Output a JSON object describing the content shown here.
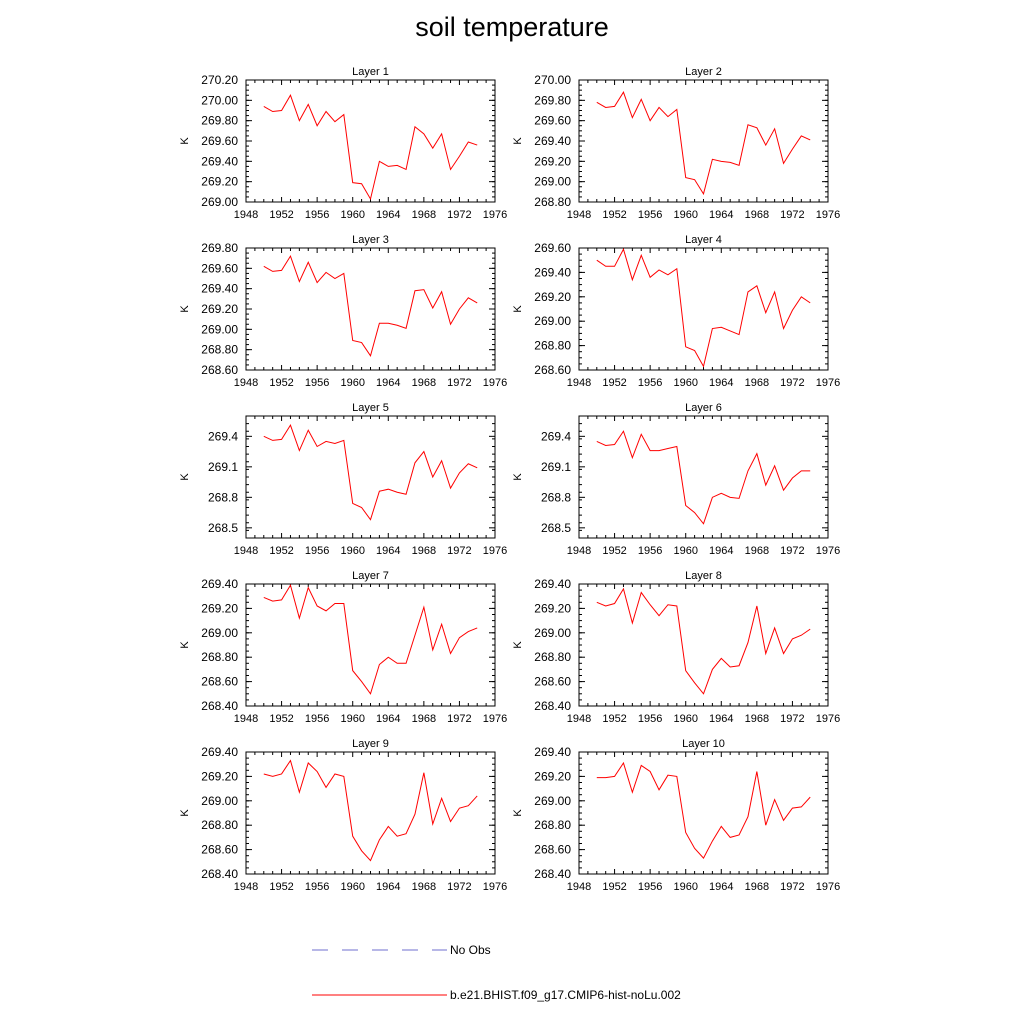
{
  "title": "soil temperature",
  "line_color": "#ff0000",
  "obs_color": "#6f6fcf",
  "legend": {
    "obs_label": "No Obs",
    "model_label": "b.e21.BHIST.f09_g17.CMIP6-hist-noLu.002"
  },
  "chart_data": [
    {
      "type": "line",
      "title": "Layer 1",
      "xlabel": "",
      "ylabel": "K",
      "xlim": [
        1948,
        1976
      ],
      "ylim": [
        269.0,
        270.2
      ],
      "xticks": [
        "1948",
        "1952",
        "1956",
        "1960",
        "1964",
        "1968",
        "1972",
        "1976"
      ],
      "yticks": [
        "269.00",
        "269.20",
        "269.40",
        "269.60",
        "269.80",
        "270.00",
        "270.20"
      ],
      "x": [
        1950,
        1951,
        1952,
        1953,
        1954,
        1955,
        1956,
        1957,
        1958,
        1959,
        1960,
        1961,
        1962,
        1963,
        1964,
        1965,
        1966,
        1967,
        1968,
        1969,
        1970,
        1971,
        1972,
        1973,
        1974
      ],
      "series": [
        {
          "name": "b.e21.BHIST.f09_g17.CMIP6-hist-noLu.002",
          "values": [
            269.94,
            269.89,
            269.9,
            270.05,
            269.8,
            269.96,
            269.75,
            269.89,
            269.79,
            269.86,
            269.19,
            269.18,
            269.03,
            269.4,
            269.35,
            269.36,
            269.32,
            269.74,
            269.67,
            269.53,
            269.67,
            269.32,
            269.45,
            269.59,
            269.56
          ]
        }
      ]
    },
    {
      "type": "line",
      "title": "Layer 2",
      "xlabel": "",
      "ylabel": "K",
      "xlim": [
        1948,
        1976
      ],
      "ylim": [
        268.8,
        270.0
      ],
      "xticks": [
        "1948",
        "1952",
        "1956",
        "1960",
        "1964",
        "1968",
        "1972",
        "1976"
      ],
      "yticks": [
        "268.80",
        "269.00",
        "269.20",
        "269.40",
        "269.60",
        "269.80",
        "270.00"
      ],
      "x": [
        1950,
        1951,
        1952,
        1953,
        1954,
        1955,
        1956,
        1957,
        1958,
        1959,
        1960,
        1961,
        1962,
        1963,
        1964,
        1965,
        1966,
        1967,
        1968,
        1969,
        1970,
        1971,
        1972,
        1973,
        1974
      ],
      "series": [
        {
          "name": "b.e21.BHIST.f09_g17.CMIP6-hist-noLu.002",
          "values": [
            269.78,
            269.73,
            269.74,
            269.88,
            269.63,
            269.81,
            269.6,
            269.73,
            269.64,
            269.71,
            269.04,
            269.02,
            268.88,
            269.22,
            269.2,
            269.19,
            269.16,
            269.56,
            269.53,
            269.36,
            269.52,
            269.18,
            269.32,
            269.45,
            269.41
          ]
        }
      ]
    },
    {
      "type": "line",
      "title": "Layer 3",
      "xlabel": "",
      "ylabel": "K",
      "xlim": [
        1948,
        1976
      ],
      "ylim": [
        268.6,
        269.8
      ],
      "xticks": [
        "1948",
        "1952",
        "1956",
        "1960",
        "1964",
        "1968",
        "1972",
        "1976"
      ],
      "yticks": [
        "268.60",
        "268.80",
        "269.00",
        "269.20",
        "269.40",
        "269.60",
        "269.80"
      ],
      "x": [
        1950,
        1951,
        1952,
        1953,
        1954,
        1955,
        1956,
        1957,
        1958,
        1959,
        1960,
        1961,
        1962,
        1963,
        1964,
        1965,
        1966,
        1967,
        1968,
        1969,
        1970,
        1971,
        1972,
        1973,
        1974
      ],
      "series": [
        {
          "name": "b.e21.BHIST.f09_g17.CMIP6-hist-noLu.002",
          "values": [
            269.62,
            269.57,
            269.58,
            269.72,
            269.47,
            269.66,
            269.46,
            269.56,
            269.5,
            269.55,
            268.89,
            268.87,
            268.74,
            269.06,
            269.06,
            269.04,
            269.01,
            269.38,
            269.39,
            269.21,
            269.37,
            269.05,
            269.2,
            269.31,
            269.26
          ]
        }
      ]
    },
    {
      "type": "line",
      "title": "Layer 4",
      "xlabel": "",
      "ylabel": "K",
      "xlim": [
        1948,
        1976
      ],
      "ylim": [
        268.6,
        269.6
      ],
      "xticks": [
        "1948",
        "1952",
        "1956",
        "1960",
        "1964",
        "1968",
        "1972",
        "1976"
      ],
      "yticks": [
        "268.60",
        "268.80",
        "269.00",
        "269.20",
        "269.40",
        "269.60"
      ],
      "x": [
        1950,
        1951,
        1952,
        1953,
        1954,
        1955,
        1956,
        1957,
        1958,
        1959,
        1960,
        1961,
        1962,
        1963,
        1964,
        1965,
        1966,
        1967,
        1968,
        1969,
        1970,
        1971,
        1972,
        1973,
        1974
      ],
      "series": [
        {
          "name": "b.e21.BHIST.f09_g17.CMIP6-hist-noLu.002",
          "values": [
            269.5,
            269.45,
            269.45,
            269.59,
            269.34,
            269.54,
            269.36,
            269.42,
            269.38,
            269.43,
            268.79,
            268.76,
            268.63,
            268.94,
            268.95,
            268.92,
            268.89,
            269.24,
            269.29,
            269.07,
            269.24,
            268.94,
            269.09,
            269.2,
            269.15
          ]
        }
      ]
    },
    {
      "type": "line",
      "title": "Layer 5",
      "xlabel": "",
      "ylabel": "K",
      "xlim": [
        1948,
        1976
      ],
      "ylim": [
        268.4,
        269.6
      ],
      "xticks": [
        "1948",
        "1952",
        "1956",
        "1960",
        "1964",
        "1968",
        "1972",
        "1976"
      ],
      "yticks": [
        "268.5",
        "268.8",
        "269.1",
        "269.4"
      ],
      "ytick_values": [
        268.5,
        268.8,
        269.1,
        269.4
      ],
      "x": [
        1950,
        1951,
        1952,
        1953,
        1954,
        1955,
        1956,
        1957,
        1958,
        1959,
        1960,
        1961,
        1962,
        1963,
        1964,
        1965,
        1966,
        1967,
        1968,
        1969,
        1970,
        1971,
        1972,
        1973,
        1974
      ],
      "series": [
        {
          "name": "b.e21.BHIST.f09_g17.CMIP6-hist-noLu.002",
          "values": [
            269.4,
            269.36,
            269.37,
            269.51,
            269.26,
            269.46,
            269.3,
            269.35,
            269.33,
            269.36,
            268.74,
            268.7,
            268.58,
            268.86,
            268.88,
            268.85,
            268.83,
            269.14,
            269.25,
            269.0,
            269.16,
            268.89,
            269.04,
            269.13,
            269.09
          ]
        }
      ]
    },
    {
      "type": "line",
      "title": "Layer 6",
      "xlabel": "",
      "ylabel": "K",
      "xlim": [
        1948,
        1976
      ],
      "ylim": [
        268.4,
        269.6
      ],
      "xticks": [
        "1948",
        "1952",
        "1956",
        "1960",
        "1964",
        "1968",
        "1972",
        "1976"
      ],
      "yticks": [
        "268.5",
        "268.8",
        "269.1",
        "269.4"
      ],
      "ytick_values": [
        268.5,
        268.8,
        269.1,
        269.4
      ],
      "x": [
        1950,
        1951,
        1952,
        1953,
        1954,
        1955,
        1956,
        1957,
        1958,
        1959,
        1960,
        1961,
        1962,
        1963,
        1964,
        1965,
        1966,
        1967,
        1968,
        1969,
        1970,
        1971,
        1972,
        1973,
        1974
      ],
      "series": [
        {
          "name": "b.e21.BHIST.f09_g17.CMIP6-hist-noLu.002",
          "values": [
            269.35,
            269.31,
            269.32,
            269.45,
            269.19,
            269.42,
            269.26,
            269.26,
            269.28,
            269.3,
            268.72,
            268.65,
            268.54,
            268.8,
            268.84,
            268.8,
            268.79,
            269.06,
            269.23,
            268.92,
            269.11,
            268.87,
            268.99,
            269.06,
            269.06
          ]
        }
      ]
    },
    {
      "type": "line",
      "title": "Layer 7",
      "xlabel": "",
      "ylabel": "K",
      "xlim": [
        1948,
        1976
      ],
      "ylim": [
        268.4,
        269.4
      ],
      "xticks": [
        "1948",
        "1952",
        "1956",
        "1960",
        "1964",
        "1968",
        "1972",
        "1976"
      ],
      "yticks": [
        "268.40",
        "268.60",
        "268.80",
        "269.00",
        "269.20",
        "269.40"
      ],
      "x": [
        1950,
        1951,
        1952,
        1953,
        1954,
        1955,
        1956,
        1957,
        1958,
        1959,
        1960,
        1961,
        1962,
        1963,
        1964,
        1965,
        1966,
        1967,
        1968,
        1969,
        1970,
        1971,
        1972,
        1973,
        1974
      ],
      "series": [
        {
          "name": "b.e21.BHIST.f09_g17.CMIP6-hist-noLu.002",
          "values": [
            269.29,
            269.26,
            269.27,
            269.39,
            269.12,
            269.37,
            269.22,
            269.18,
            269.24,
            269.24,
            268.69,
            268.6,
            268.5,
            268.74,
            268.8,
            268.75,
            268.75,
            268.98,
            269.21,
            268.86,
            269.07,
            268.83,
            268.96,
            269.01,
            269.04
          ]
        }
      ]
    },
    {
      "type": "line",
      "title": "Layer 8",
      "xlabel": "",
      "ylabel": "K",
      "xlim": [
        1948,
        1976
      ],
      "ylim": [
        268.4,
        269.4
      ],
      "xticks": [
        "1948",
        "1952",
        "1956",
        "1960",
        "1964",
        "1968",
        "1972",
        "1976"
      ],
      "yticks": [
        "268.40",
        "268.60",
        "268.80",
        "269.00",
        "269.20",
        "269.40"
      ],
      "x": [
        1950,
        1951,
        1952,
        1953,
        1954,
        1955,
        1956,
        1957,
        1958,
        1959,
        1960,
        1961,
        1962,
        1963,
        1964,
        1965,
        1966,
        1967,
        1968,
        1969,
        1970,
        1971,
        1972,
        1973,
        1974
      ],
      "series": [
        {
          "name": "b.e21.BHIST.f09_g17.CMIP6-hist-noLu.002",
          "values": [
            269.25,
            269.22,
            269.24,
            269.36,
            269.08,
            269.33,
            269.23,
            269.14,
            269.23,
            269.22,
            268.69,
            268.59,
            268.5,
            268.7,
            268.79,
            268.72,
            268.73,
            268.92,
            269.22,
            268.83,
            269.04,
            268.83,
            268.95,
            268.98,
            269.03
          ]
        }
      ]
    },
    {
      "type": "line",
      "title": "Layer 9",
      "xlabel": "",
      "ylabel": "K",
      "xlim": [
        1948,
        1976
      ],
      "ylim": [
        268.4,
        269.4
      ],
      "xticks": [
        "1948",
        "1952",
        "1956",
        "1960",
        "1964",
        "1968",
        "1972",
        "1976"
      ],
      "yticks": [
        "268.40",
        "268.60",
        "268.80",
        "269.00",
        "269.20",
        "269.40"
      ],
      "x": [
        1950,
        1951,
        1952,
        1953,
        1954,
        1955,
        1956,
        1957,
        1958,
        1959,
        1960,
        1961,
        1962,
        1963,
        1964,
        1965,
        1966,
        1967,
        1968,
        1969,
        1970,
        1971,
        1972,
        1973,
        1974
      ],
      "series": [
        {
          "name": "b.e21.BHIST.f09_g17.CMIP6-hist-noLu.002",
          "values": [
            269.22,
            269.2,
            269.22,
            269.33,
            269.07,
            269.31,
            269.24,
            269.11,
            269.22,
            269.2,
            268.71,
            268.59,
            268.51,
            268.68,
            268.79,
            268.71,
            268.73,
            268.89,
            269.23,
            268.81,
            269.02,
            268.83,
            268.94,
            268.96,
            269.04
          ]
        }
      ]
    },
    {
      "type": "line",
      "title": "Layer 10",
      "xlabel": "",
      "ylabel": "K",
      "xlim": [
        1948,
        1976
      ],
      "ylim": [
        268.4,
        269.4
      ],
      "xticks": [
        "1948",
        "1952",
        "1956",
        "1960",
        "1964",
        "1968",
        "1972",
        "1976"
      ],
      "yticks": [
        "268.40",
        "268.60",
        "268.80",
        "269.00",
        "269.20",
        "269.40"
      ],
      "x": [
        1950,
        1951,
        1952,
        1953,
        1954,
        1955,
        1956,
        1957,
        1958,
        1959,
        1960,
        1961,
        1962,
        1963,
        1964,
        1965,
        1966,
        1967,
        1968,
        1969,
        1970,
        1971,
        1972,
        1973,
        1974
      ],
      "series": [
        {
          "name": "b.e21.BHIST.f09_g17.CMIP6-hist-noLu.002",
          "values": [
            269.19,
            269.19,
            269.2,
            269.31,
            269.07,
            269.29,
            269.24,
            269.09,
            269.21,
            269.2,
            268.74,
            268.61,
            268.53,
            268.67,
            268.79,
            268.7,
            268.72,
            268.87,
            269.24,
            268.8,
            269.01,
            268.84,
            268.94,
            268.95,
            269.03
          ]
        }
      ]
    }
  ]
}
